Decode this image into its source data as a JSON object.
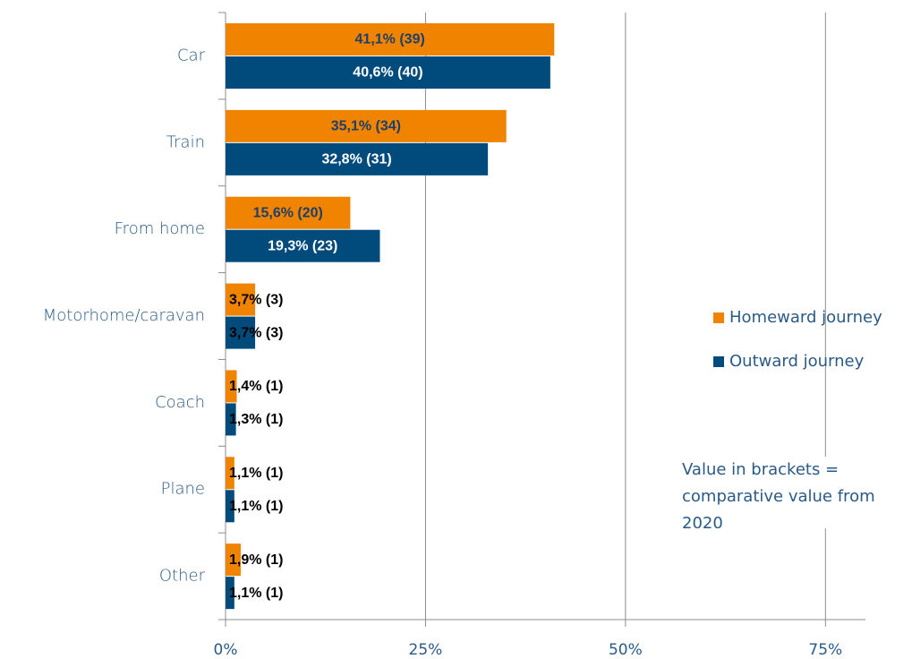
{
  "chart_data": {
    "type": "barh",
    "categories": [
      "Car",
      "Train",
      "From home",
      "Motorhome/caravan",
      "Coach",
      "Plane",
      "Other"
    ],
    "series": [
      {
        "name": "Homeward journey",
        "color": "#f08300",
        "values": [
          41.1,
          35.1,
          15.6,
          3.7,
          1.4,
          1.1,
          1.9
        ],
        "value_labels": [
          "41,1% (39)",
          "35,1% (34)",
          "15,6% (20)",
          "3,7% (3)",
          "1,4% (1)",
          "1,1% (1)",
          "1,9% (1)"
        ]
      },
      {
        "name": "Outward journey",
        "color": "#004b7c",
        "values": [
          40.6,
          32.8,
          19.3,
          3.7,
          1.3,
          1.1,
          1.1
        ],
        "value_labels": [
          "40,6% (40)",
          "32,8% (31)",
          "19,3% (23)",
          "3,7% (3)",
          "1,3% (1)",
          "1,1% (1)",
          "1,1% (1)"
        ]
      }
    ],
    "xlim": [
      0,
      80
    ],
    "xticks": [
      {
        "value": 0,
        "label": "0%"
      },
      {
        "value": 25,
        "label": "25%"
      },
      {
        "value": 50,
        "label": "50%"
      },
      {
        "value": 75,
        "label": "75%"
      }
    ],
    "grid": true,
    "legend": "right",
    "annotation": "Value in brackets = comparative value from 2020"
  }
}
